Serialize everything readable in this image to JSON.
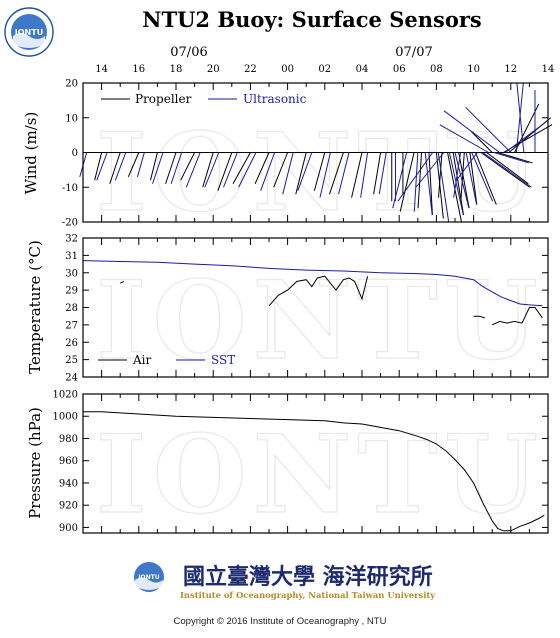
{
  "title": "NTU2 Buoy: Surface Sensors",
  "date_labels": [
    "07/06",
    "07/07"
  ],
  "hour_labels": [
    "14",
    "16",
    "18",
    "20",
    "22",
    "00",
    "02",
    "04",
    "06",
    "08",
    "10",
    "12",
    "14"
  ],
  "watermark": "IONTU",
  "logo": {
    "badge": "IONTU",
    "chinese": "國立臺灣大學 海洋研究所",
    "english": "Institute of Oceanography, National Taiwan University"
  },
  "copyright": "Copyright © 2016 Institute of Oceanography , NTU",
  "colors": {
    "propeller": "#000000",
    "ultrasonic": "#1a1aa6",
    "air": "#000000",
    "sst": "#1a1aa6"
  },
  "chart_data": [
    {
      "type": "line",
      "subtype": "wind-vectors",
      "ylabel": "Wind (m/s)",
      "ylim": [
        -20,
        20
      ],
      "yticks": [
        -20,
        -10,
        0,
        10,
        20
      ],
      "x_hours_from": "07/06 12:00",
      "xlim": [
        1.0,
        26.0
      ],
      "legend": "top-left",
      "series": [
        {
          "name": "Propeller",
          "x": [
            2.0,
            3.0,
            4.0,
            5.0,
            6.0,
            7.0,
            8.0,
            9.0,
            10.0,
            11.0,
            12.0,
            13.0,
            14.0,
            15.0,
            16.0,
            17.0,
            17.6,
            18.2,
            18.8,
            19.2,
            19.6,
            20.0,
            20.3,
            20.6,
            20.9,
            21.2,
            21.5,
            21.8,
            22.1,
            22.4,
            22.7,
            23.0,
            23.3,
            23.6,
            23.9,
            24.2
          ],
          "u": [
            -2,
            -3,
            -3,
            -2,
            -3,
            -4,
            -3,
            -4,
            -5,
            -4,
            -4,
            -3,
            -3,
            -4,
            -3,
            -2,
            0,
            0,
            -4,
            -1,
            1,
            2,
            -1,
            4,
            3,
            3,
            -1,
            2,
            6,
            14,
            12,
            -6,
            10,
            14,
            12,
            7
          ],
          "v": [
            -8,
            -9,
            -7,
            -8,
            -9,
            -8,
            -10,
            -11,
            -9,
            -9,
            -10,
            -12,
            -11,
            -12,
            -13,
            -12,
            -14,
            -12,
            -17,
            -16,
            -18,
            -19,
            -13,
            -20,
            -18,
            -16,
            -14,
            -15,
            -15,
            -10,
            -9,
            6,
            -3,
            8,
            10,
            14
          ]
        },
        {
          "name": "Ultrasonic",
          "x": [
            1.2,
            2.3,
            3.3,
            4.3,
            5.3,
            6.3,
            7.3,
            8.3,
            9.3,
            10.3,
            11.3,
            12.3,
            13.3,
            14.3,
            15.3,
            16.3,
            17.3,
            17.8,
            18.4,
            19.0,
            19.4,
            19.8,
            20.1,
            20.4,
            20.7,
            21.0,
            21.3,
            21.6,
            21.9,
            22.2,
            22.5,
            22.8,
            23.1,
            23.4,
            23.7,
            24.0,
            24.3,
            24.7,
            25.3
          ],
          "u": [
            -2,
            -3,
            -3,
            -2,
            -3,
            -3,
            -4,
            -4,
            -4,
            -5,
            -4,
            -3,
            -4,
            -3,
            -3,
            -2,
            -2,
            0,
            -4,
            -1,
            2,
            -10,
            3,
            -8,
            4,
            4,
            -2,
            3,
            6,
            -6,
            14,
            -14,
            10,
            -16,
            12,
            -13,
            2,
            -2,
            0
          ],
          "v": [
            -7,
            -8,
            -8,
            -7,
            -9,
            -9,
            -10,
            -10,
            -10,
            -10,
            -11,
            -12,
            -11,
            -13,
            -12,
            -13,
            -12,
            -14,
            -16,
            -17,
            -18,
            -14,
            -20,
            -10,
            -18,
            -16,
            -13,
            -15,
            -14,
            -8,
            -10,
            8,
            -3,
            12,
            9,
            13,
            20,
            20,
            18
          ]
        }
      ]
    },
    {
      "type": "line",
      "ylabel": "Temperature (°C)",
      "ylim": [
        24,
        32
      ],
      "yticks": [
        24,
        25,
        26,
        27,
        28,
        29,
        30,
        31,
        32
      ],
      "xlim": [
        1.0,
        26.0
      ],
      "legend": "bottom-left",
      "series": [
        {
          "name": "Air",
          "x": [
            3.0,
            3.2,
            null,
            11.0,
            11.5,
            12.0,
            12.5,
            13.0,
            13.3,
            13.6,
            14.0,
            14.3,
            14.6,
            15.0,
            15.3,
            15.6,
            16.0,
            16.3,
            null,
            22.0,
            22.3,
            22.6,
            null,
            23.0,
            23.4,
            23.8,
            24.2,
            24.6,
            25.0,
            25.3,
            25.7
          ],
          "y": [
            29.4,
            29.5,
            null,
            28.1,
            28.7,
            29.0,
            29.5,
            29.6,
            29.2,
            29.7,
            29.8,
            29.4,
            29.0,
            29.6,
            29.7,
            29.5,
            28.5,
            29.8,
            null,
            27.5,
            27.5,
            27.4,
            null,
            27.0,
            27.2,
            27.1,
            27.2,
            27.1,
            28.0,
            28.0,
            27.4
          ]
        },
        {
          "name": "SST",
          "x": [
            1.0,
            3.0,
            5.0,
            7.0,
            9.0,
            11.0,
            13.0,
            15.0,
            17.0,
            19.0,
            20.0,
            21.0,
            22.0,
            22.5,
            23.0,
            23.5,
            24.0,
            24.5,
            25.0,
            25.7
          ],
          "y": [
            30.7,
            30.65,
            30.6,
            30.5,
            30.4,
            30.25,
            30.15,
            30.1,
            30.0,
            29.95,
            29.9,
            29.8,
            29.6,
            29.2,
            28.9,
            28.6,
            28.4,
            28.2,
            28.15,
            28.1
          ]
        }
      ]
    },
    {
      "type": "line",
      "ylabel": "Pressure (hPa)",
      "ylim": [
        895,
        1020
      ],
      "yticks": [
        900,
        920,
        940,
        960,
        980,
        1000,
        1020
      ],
      "xlim": [
        1.0,
        26.0
      ],
      "series": [
        {
          "name": "Pressure",
          "x": [
            1.0,
            2.0,
            4.0,
            6.0,
            8.0,
            10.0,
            12.0,
            14.0,
            15.0,
            16.0,
            17.0,
            18.0,
            19.0,
            19.5,
            20.0,
            20.5,
            21.0,
            21.5,
            22.0,
            22.5,
            23.0,
            23.3,
            23.6,
            24.0,
            24.5,
            25.0,
            25.5,
            25.8
          ],
          "y": [
            1004,
            1004,
            1002,
            1000,
            999,
            998,
            997,
            996,
            994,
            993,
            990,
            987,
            982,
            979,
            975,
            969,
            961,
            952,
            940,
            922,
            906,
            899,
            897,
            897,
            901,
            904,
            908,
            911
          ]
        }
      ]
    }
  ]
}
